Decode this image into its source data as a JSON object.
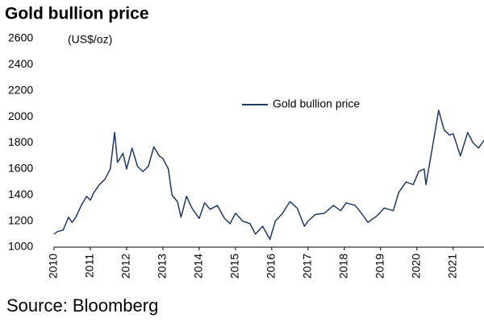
{
  "chart_data": {
    "type": "line",
    "title": "Gold bullion price",
    "y_label": "(US$/oz)",
    "source": "Source: Bloomberg",
    "x": [
      2010.0,
      2010.1,
      2010.25,
      2010.4,
      2010.5,
      2010.6,
      2010.75,
      2010.9,
      2011.0,
      2011.1,
      2011.25,
      2011.4,
      2011.55,
      2011.67,
      2011.75,
      2011.9,
      2012.0,
      2012.15,
      2012.3,
      2012.45,
      2012.6,
      2012.75,
      2012.9,
      2013.0,
      2013.15,
      2013.25,
      2013.4,
      2013.5,
      2013.65,
      2013.8,
      2014.0,
      2014.15,
      2014.3,
      2014.5,
      2014.7,
      2014.85,
      2015.0,
      2015.2,
      2015.4,
      2015.55,
      2015.75,
      2015.95,
      2016.1,
      2016.3,
      2016.5,
      2016.7,
      2016.9,
      2017.0,
      2017.2,
      2017.45,
      2017.7,
      2017.9,
      2018.05,
      2018.3,
      2018.5,
      2018.65,
      2018.9,
      2019.1,
      2019.35,
      2019.5,
      2019.7,
      2019.9,
      2020.05,
      2020.2,
      2020.25,
      2020.4,
      2020.6,
      2020.75,
      2020.9,
      2021.0,
      2021.2,
      2021.4,
      2021.55,
      2021.7,
      2021.85
    ],
    "series": [
      {
        "name": "Gold bullion price",
        "color": "#1f3864",
        "values": [
          1100,
          1120,
          1130,
          1230,
          1190,
          1230,
          1320,
          1390,
          1360,
          1420,
          1480,
          1520,
          1600,
          1880,
          1650,
          1720,
          1600,
          1760,
          1620,
          1580,
          1620,
          1770,
          1700,
          1680,
          1600,
          1400,
          1350,
          1230,
          1390,
          1300,
          1220,
          1340,
          1290,
          1320,
          1220,
          1180,
          1260,
          1200,
          1180,
          1100,
          1160,
          1060,
          1200,
          1260,
          1350,
          1300,
          1160,
          1200,
          1250,
          1260,
          1320,
          1280,
          1340,
          1320,
          1250,
          1190,
          1240,
          1300,
          1280,
          1420,
          1500,
          1480,
          1580,
          1600,
          1480,
          1720,
          2050,
          1900,
          1860,
          1870,
          1700,
          1880,
          1800,
          1760,
          1820
        ]
      }
    ],
    "xlim": [
      2010,
      2021.85
    ],
    "xticks": [
      2010,
      2011,
      2012,
      2013,
      2014,
      2015,
      2016,
      2017,
      2018,
      2019,
      2020,
      2021
    ],
    "ylim": [
      1000,
      2600
    ],
    "yticks": [
      1000,
      1200,
      1400,
      1600,
      1800,
      2000,
      2200,
      2400,
      2600
    ],
    "grid": false
  }
}
